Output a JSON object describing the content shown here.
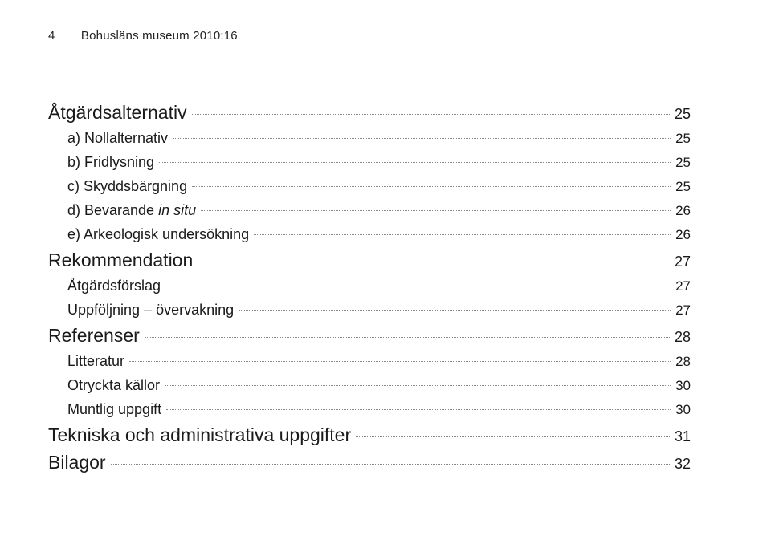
{
  "page_number": "4",
  "running_title": "Bohusläns museum 2010:16",
  "colors": {
    "text": "#1a1a1a",
    "leader": "#888888",
    "background": "#ffffff"
  },
  "typography": {
    "header_fontsize": 15,
    "level1_fontsize": 23,
    "level2_fontsize": 18,
    "pagenum_fontsize": 17,
    "font_family": "Helvetica Neue, Helvetica, Arial, sans-serif",
    "font_weight": 300
  },
  "toc": [
    {
      "level": 1,
      "label": "Åtgärdsalternativ",
      "page": "25",
      "italic": false
    },
    {
      "level": 2,
      "label": "a) Nollalternativ",
      "page": "25",
      "italic": false
    },
    {
      "level": 2,
      "label": "b) Fridlysning",
      "page": "25",
      "italic": false
    },
    {
      "level": 2,
      "label": "c) Skyddsbärgning",
      "page": "25",
      "italic": false
    },
    {
      "level": 2,
      "label": "d) Bevarande in situ",
      "page": "26",
      "italic": true
    },
    {
      "level": 2,
      "label": "e) Arkeologisk undersökning",
      "page": "26",
      "italic": false
    },
    {
      "level": 1,
      "label": "Rekommendation",
      "page": "27",
      "italic": false
    },
    {
      "level": 2,
      "label": "Åtgärdsförslag",
      "page": "27",
      "italic": false
    },
    {
      "level": 2,
      "label": "Uppföljning – övervakning",
      "page": "27",
      "italic": false
    },
    {
      "level": 1,
      "label": "Referenser",
      "page": "28",
      "italic": false
    },
    {
      "level": 2,
      "label": "Litteratur",
      "page": "28",
      "italic": false
    },
    {
      "level": 2,
      "label": "Otryckta källor",
      "page": "30",
      "italic": false
    },
    {
      "level": 2,
      "label": "Muntlig uppgift",
      "page": "30",
      "italic": false
    },
    {
      "level": 1,
      "label": "Tekniska och administrativa uppgifter",
      "page": "31",
      "italic": false
    },
    {
      "level": 1,
      "label": "Bilagor",
      "page": "32",
      "italic": false
    }
  ]
}
